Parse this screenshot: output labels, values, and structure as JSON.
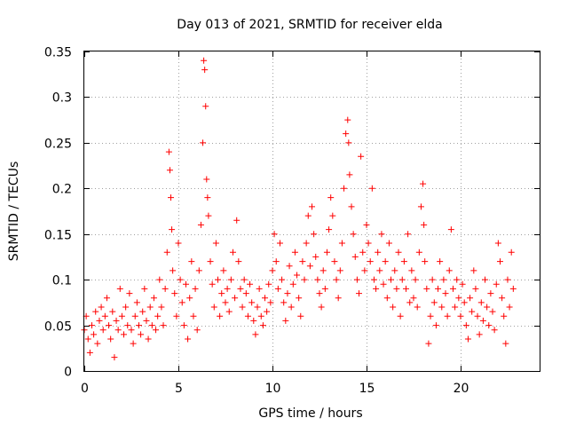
{
  "chart_data": {
    "type": "scatter",
    "title": "Day 013 of 2021, SRMTID for receiver elda",
    "xlabel": "GPS time / hours",
    "ylabel": "SRMTID / TECUs",
    "xlim": [
      0,
      24.2
    ],
    "ylim": [
      0,
      0.35
    ],
    "x_ticks": [
      0,
      5,
      10,
      15,
      20
    ],
    "x_tick_labels": [
      "0",
      "5",
      "10",
      "15",
      "20"
    ],
    "y_ticks": [
      0,
      0.05,
      0.1,
      0.15,
      0.2,
      0.25,
      0.3,
      0.35
    ],
    "y_tick_labels": [
      "0",
      "0.05",
      "0.1",
      "0.15",
      "0.2",
      "0.25",
      "0.3",
      "0.35"
    ],
    "grid": true,
    "marker": "plus",
    "color": "#ff0000",
    "series": [
      {
        "name": "SRMTID",
        "points": [
          [
            0.0,
            0.045
          ],
          [
            0.1,
            0.06
          ],
          [
            0.2,
            0.035
          ],
          [
            0.3,
            0.02
          ],
          [
            0.4,
            0.05
          ],
          [
            0.5,
            0.04
          ],
          [
            0.6,
            0.065
          ],
          [
            0.7,
            0.03
          ],
          [
            0.8,
            0.055
          ],
          [
            0.9,
            0.07
          ],
          [
            1.0,
            0.045
          ],
          [
            1.1,
            0.06
          ],
          [
            1.2,
            0.08
          ],
          [
            1.3,
            0.05
          ],
          [
            1.4,
            0.035
          ],
          [
            1.5,
            0.065
          ],
          [
            1.6,
            0.015
          ],
          [
            1.7,
            0.055
          ],
          [
            1.8,
            0.045
          ],
          [
            1.9,
            0.09
          ],
          [
            2.0,
            0.06
          ],
          [
            2.1,
            0.04
          ],
          [
            2.2,
            0.07
          ],
          [
            2.3,
            0.05
          ],
          [
            2.4,
            0.085
          ],
          [
            2.5,
            0.045
          ],
          [
            2.6,
            0.03
          ],
          [
            2.7,
            0.06
          ],
          [
            2.8,
            0.075
          ],
          [
            2.9,
            0.05
          ],
          [
            3.0,
            0.04
          ],
          [
            3.1,
            0.065
          ],
          [
            3.2,
            0.09
          ],
          [
            3.3,
            0.055
          ],
          [
            3.4,
            0.035
          ],
          [
            3.5,
            0.07
          ],
          [
            3.6,
            0.05
          ],
          [
            3.7,
            0.08
          ],
          [
            3.8,
            0.045
          ],
          [
            3.9,
            0.06
          ],
          [
            4.0,
            0.1
          ],
          [
            4.1,
            0.07
          ],
          [
            4.2,
            0.05
          ],
          [
            4.3,
            0.09
          ],
          [
            4.4,
            0.13
          ],
          [
            4.5,
            0.24
          ],
          [
            4.55,
            0.22
          ],
          [
            4.6,
            0.19
          ],
          [
            4.65,
            0.155
          ],
          [
            4.7,
            0.11
          ],
          [
            4.8,
            0.085
          ],
          [
            4.9,
            0.06
          ],
          [
            5.0,
            0.14
          ],
          [
            5.1,
            0.1
          ],
          [
            5.2,
            0.075
          ],
          [
            5.3,
            0.05
          ],
          [
            5.4,
            0.095
          ],
          [
            5.5,
            0.035
          ],
          [
            5.6,
            0.08
          ],
          [
            5.7,
            0.12
          ],
          [
            5.8,
            0.06
          ],
          [
            5.9,
            0.09
          ],
          [
            6.0,
            0.045
          ],
          [
            6.1,
            0.11
          ],
          [
            6.2,
            0.16
          ],
          [
            6.3,
            0.25
          ],
          [
            6.35,
            0.34
          ],
          [
            6.4,
            0.33
          ],
          [
            6.45,
            0.29
          ],
          [
            6.5,
            0.21
          ],
          [
            6.55,
            0.19
          ],
          [
            6.6,
            0.17
          ],
          [
            6.7,
            0.12
          ],
          [
            6.8,
            0.095
          ],
          [
            6.9,
            0.07
          ],
          [
            7.0,
            0.14
          ],
          [
            7.1,
            0.1
          ],
          [
            7.2,
            0.06
          ],
          [
            7.3,
            0.085
          ],
          [
            7.4,
            0.11
          ],
          [
            7.5,
            0.075
          ],
          [
            7.6,
            0.09
          ],
          [
            7.7,
            0.065
          ],
          [
            7.8,
            0.1
          ],
          [
            7.9,
            0.13
          ],
          [
            8.0,
            0.08
          ],
          [
            8.1,
            0.165
          ],
          [
            8.2,
            0.12
          ],
          [
            8.3,
            0.09
          ],
          [
            8.4,
            0.07
          ],
          [
            8.5,
            0.1
          ],
          [
            8.6,
            0.085
          ],
          [
            8.7,
            0.06
          ],
          [
            8.8,
            0.095
          ],
          [
            8.9,
            0.075
          ],
          [
            9.0,
            0.055
          ],
          [
            9.1,
            0.04
          ],
          [
            9.2,
            0.07
          ],
          [
            9.3,
            0.09
          ],
          [
            9.4,
            0.06
          ],
          [
            9.5,
            0.05
          ],
          [
            9.6,
            0.08
          ],
          [
            9.7,
            0.065
          ],
          [
            9.8,
            0.095
          ],
          [
            9.9,
            0.075
          ],
          [
            10.0,
            0.11
          ],
          [
            10.1,
            0.15
          ],
          [
            10.2,
            0.12
          ],
          [
            10.3,
            0.09
          ],
          [
            10.4,
            0.14
          ],
          [
            10.5,
            0.1
          ],
          [
            10.6,
            0.075
          ],
          [
            10.7,
            0.055
          ],
          [
            10.8,
            0.085
          ],
          [
            10.9,
            0.115
          ],
          [
            11.0,
            0.07
          ],
          [
            11.1,
            0.095
          ],
          [
            11.2,
            0.13
          ],
          [
            11.3,
            0.105
          ],
          [
            11.4,
            0.08
          ],
          [
            11.5,
            0.06
          ],
          [
            11.6,
            0.12
          ],
          [
            11.7,
            0.1
          ],
          [
            11.8,
            0.14
          ],
          [
            11.9,
            0.17
          ],
          [
            12.0,
            0.115
          ],
          [
            12.1,
            0.18
          ],
          [
            12.2,
            0.15
          ],
          [
            12.3,
            0.125
          ],
          [
            12.4,
            0.1
          ],
          [
            12.5,
            0.085
          ],
          [
            12.6,
            0.07
          ],
          [
            12.7,
            0.11
          ],
          [
            12.8,
            0.09
          ],
          [
            12.9,
            0.13
          ],
          [
            13.0,
            0.155
          ],
          [
            13.1,
            0.19
          ],
          [
            13.2,
            0.17
          ],
          [
            13.3,
            0.12
          ],
          [
            13.4,
            0.1
          ],
          [
            13.5,
            0.08
          ],
          [
            13.6,
            0.11
          ],
          [
            13.7,
            0.14
          ],
          [
            13.8,
            0.2
          ],
          [
            13.9,
            0.26
          ],
          [
            14.0,
            0.275
          ],
          [
            14.05,
            0.25
          ],
          [
            14.1,
            0.215
          ],
          [
            14.2,
            0.18
          ],
          [
            14.3,
            0.15
          ],
          [
            14.4,
            0.125
          ],
          [
            14.5,
            0.1
          ],
          [
            14.6,
            0.085
          ],
          [
            14.7,
            0.235
          ],
          [
            14.8,
            0.13
          ],
          [
            14.9,
            0.11
          ],
          [
            15.0,
            0.16
          ],
          [
            15.1,
            0.14
          ],
          [
            15.2,
            0.12
          ],
          [
            15.3,
            0.2
          ],
          [
            15.4,
            0.1
          ],
          [
            15.5,
            0.09
          ],
          [
            15.6,
            0.13
          ],
          [
            15.7,
            0.11
          ],
          [
            15.8,
            0.15
          ],
          [
            15.9,
            0.095
          ],
          [
            16.0,
            0.12
          ],
          [
            16.1,
            0.08
          ],
          [
            16.2,
            0.14
          ],
          [
            16.3,
            0.1
          ],
          [
            16.4,
            0.07
          ],
          [
            16.5,
            0.11
          ],
          [
            16.6,
            0.09
          ],
          [
            16.7,
            0.13
          ],
          [
            16.8,
            0.06
          ],
          [
            16.9,
            0.1
          ],
          [
            17.0,
            0.12
          ],
          [
            17.1,
            0.09
          ],
          [
            17.2,
            0.15
          ],
          [
            17.3,
            0.075
          ],
          [
            17.4,
            0.11
          ],
          [
            17.5,
            0.08
          ],
          [
            17.6,
            0.1
          ],
          [
            17.7,
            0.07
          ],
          [
            17.8,
            0.13
          ],
          [
            17.9,
            0.18
          ],
          [
            18.0,
            0.205
          ],
          [
            18.05,
            0.16
          ],
          [
            18.1,
            0.12
          ],
          [
            18.2,
            0.09
          ],
          [
            18.3,
            0.03
          ],
          [
            18.4,
            0.06
          ],
          [
            18.5,
            0.1
          ],
          [
            18.6,
            0.075
          ],
          [
            18.7,
            0.05
          ],
          [
            18.8,
            0.09
          ],
          [
            18.9,
            0.12
          ],
          [
            19.0,
            0.07
          ],
          [
            19.1,
            0.1
          ],
          [
            19.2,
            0.085
          ],
          [
            19.3,
            0.06
          ],
          [
            19.4,
            0.11
          ],
          [
            19.5,
            0.155
          ],
          [
            19.6,
            0.09
          ],
          [
            19.7,
            0.07
          ],
          [
            19.8,
            0.1
          ],
          [
            19.9,
            0.08
          ],
          [
            20.0,
            0.06
          ],
          [
            20.1,
            0.095
          ],
          [
            20.2,
            0.075
          ],
          [
            20.3,
            0.05
          ],
          [
            20.4,
            0.035
          ],
          [
            20.5,
            0.08
          ],
          [
            20.6,
            0.065
          ],
          [
            20.7,
            0.11
          ],
          [
            20.8,
            0.09
          ],
          [
            20.9,
            0.06
          ],
          [
            21.0,
            0.04
          ],
          [
            21.1,
            0.075
          ],
          [
            21.2,
            0.055
          ],
          [
            21.3,
            0.1
          ],
          [
            21.4,
            0.07
          ],
          [
            21.5,
            0.05
          ],
          [
            21.6,
            0.085
          ],
          [
            21.7,
            0.065
          ],
          [
            21.8,
            0.045
          ],
          [
            21.9,
            0.095
          ],
          [
            22.0,
            0.14
          ],
          [
            22.1,
            0.12
          ],
          [
            22.2,
            0.08
          ],
          [
            22.3,
            0.06
          ],
          [
            22.4,
            0.03
          ],
          [
            22.5,
            0.1
          ],
          [
            22.6,
            0.07
          ],
          [
            22.7,
            0.13
          ],
          [
            22.8,
            0.09
          ]
        ]
      }
    ]
  }
}
